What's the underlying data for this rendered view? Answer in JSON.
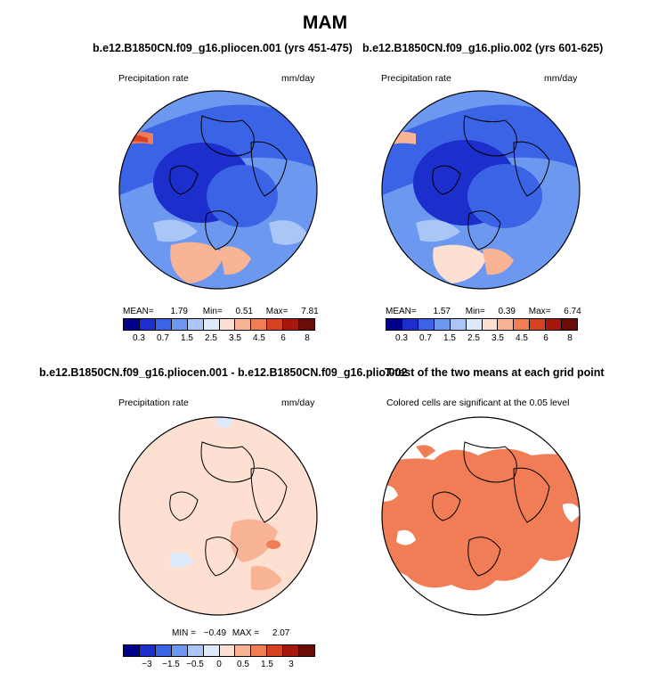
{
  "title": "MAM",
  "panels": [
    {
      "title": "b.e12.B1850CN.f09_g16.pliocen.001 (yrs 451-475)",
      "left_label": "Precipitation rate",
      "right_label": "mm/day",
      "stats": {
        "mean_label": "MEAN=",
        "mean": "1.79",
        "min_label": "Min=",
        "min": "0.51",
        "max_label": "Max=",
        "max": "7.81"
      }
    },
    {
      "title": "b.e12.B1850CN.f09_g16.plio.002 (yrs 601-625)",
      "left_label": "Precipitation rate",
      "right_label": "mm/day",
      "stats": {
        "mean_label": "MEAN=",
        "mean": "1.57",
        "min_label": "Min=",
        "min": "0.39",
        "max_label": "Max=",
        "max": "6.74"
      }
    },
    {
      "title": "b.e12.B1850CN.f09_g16.pliocen.001 - b.e12.B1850CN.f09_g16.plio.002",
      "left_label": "Precipitation rate",
      "right_label": "mm/day",
      "stats": {
        "min_label": "MIN =",
        "min": "−0.49",
        "max_label": "MAX =",
        "max": "2.07"
      }
    },
    {
      "title": "T-test of the two means at each grid point",
      "left_label": "Colored cells are significant at the 0.05 level"
    }
  ],
  "chart_data": [
    {
      "type": "heatmap",
      "title": "b.e12.B1850CN.f09_g16.pliocen.001 (yrs 451-475)",
      "variable": "Precipitation rate",
      "units": "mm/day",
      "projection": "north polar stereographic",
      "colorbar_levels": [
        0.3,
        0.7,
        1.5,
        2.5,
        3.5,
        4.5,
        6,
        8
      ],
      "mean": 1.79,
      "min": 0.51,
      "max": 7.81
    },
    {
      "type": "heatmap",
      "title": "b.e12.B1850CN.f09_g16.plio.002 (yrs 601-625)",
      "variable": "Precipitation rate",
      "units": "mm/day",
      "projection": "north polar stereographic",
      "colorbar_levels": [
        0.3,
        0.7,
        1.5,
        2.5,
        3.5,
        4.5,
        6,
        8
      ],
      "mean": 1.57,
      "min": 0.39,
      "max": 6.74
    },
    {
      "type": "heatmap",
      "title": "b.e12.B1850CN.f09_g16.pliocen.001 - b.e12.B1850CN.f09_g16.plio.002",
      "variable": "Precipitation rate",
      "units": "mm/day",
      "projection": "north polar stereographic",
      "colorbar_levels": [
        -3,
        -1.5,
        -0.5,
        0,
        0.5,
        1.5,
        3
      ],
      "min": -0.49,
      "max": 2.07
    },
    {
      "type": "heatmap",
      "title": "T-test of the two means at each grid point",
      "note": "Colored cells are significant at the 0.05 level",
      "projection": "north polar stereographic"
    }
  ],
  "colorbars": {
    "abs": {
      "colors": [
        "#00008c",
        "#1c2ecc",
        "#3a63e6",
        "#6d98f0",
        "#a9c6f7",
        "#ddeafb",
        "#fde0d2",
        "#f8b495",
        "#f07d55",
        "#d74222",
        "#a6170d",
        "#6b0c06"
      ],
      "labels": [
        "0.3",
        "0.7",
        "1.5",
        "2.5",
        "3.5",
        "4.5",
        "6",
        "8"
      ]
    },
    "diff": {
      "colors": [
        "#00008c",
        "#1c2ecc",
        "#3a63e6",
        "#6d98f0",
        "#a9c6f7",
        "#ddeafb",
        "#fde0d2",
        "#f8b495",
        "#f07d55",
        "#d74222",
        "#a6170d",
        "#6b0c06"
      ],
      "labels": [
        "−3",
        "−1.5",
        "−0.5",
        "0",
        "0.5",
        "1.5",
        "3"
      ]
    }
  }
}
